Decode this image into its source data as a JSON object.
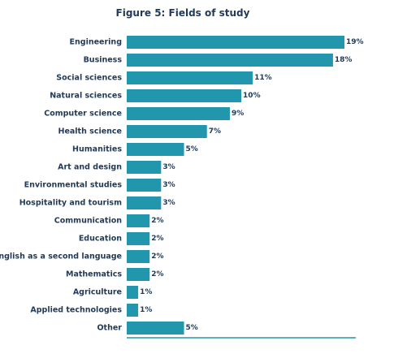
{
  "chart_data": {
    "type": "bar",
    "orientation": "horizontal",
    "title": "Figure 5: Fields of study",
    "categories": [
      "Engineering",
      "Business",
      "Social sciences",
      "Natural sciences",
      "Computer science",
      "Health science",
      "Humanities",
      "Art and design",
      "Environmental studies",
      "Hospitality and tourism",
      "Communication",
      "Education",
      "English as a second language",
      "Mathematics",
      "Agriculture",
      "Applied technologies",
      "Other"
    ],
    "values": [
      19,
      18,
      11,
      10,
      9,
      7,
      5,
      3,
      3,
      3,
      2,
      2,
      2,
      2,
      1,
      1,
      5
    ],
    "value_labels": [
      "19%",
      "18%",
      "11%",
      "10%",
      "9%",
      "7%",
      "5%",
      "3%",
      "3%",
      "3%",
      "2%",
      "2%",
      "2%",
      "2%",
      "1%",
      "1%",
      "5%"
    ],
    "xlim": [
      0,
      19
    ],
    "grid": false,
    "bar_color": "#2196ad",
    "text_color": "#1f3a5a"
  }
}
